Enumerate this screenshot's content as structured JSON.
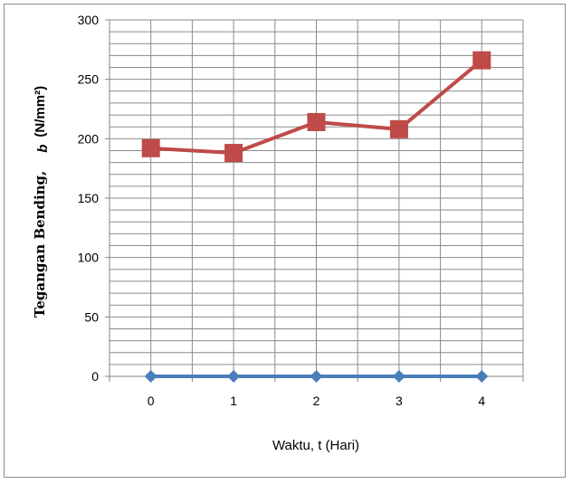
{
  "chart_data": {
    "type": "line",
    "categories": [
      "0",
      "1",
      "2",
      "3",
      "4"
    ],
    "x": [
      0,
      1,
      2,
      3,
      4
    ],
    "series": [
      {
        "values": [
          0,
          0,
          0,
          0,
          0
        ],
        "color": "#4a7ebb",
        "marker": "diamond"
      },
      {
        "values": [
          192,
          188,
          214,
          208,
          266
        ],
        "color": "#be4b48",
        "marker": "square"
      }
    ],
    "xlabel": "Waktu, t (Hari)",
    "ylabel_main": "Tegangan Bending,",
    "ylabel_subscript": "b",
    "ylabel_unit": "(N/mm²)",
    "ylim": [
      0,
      300
    ],
    "yticks": [
      0,
      50,
      100,
      150,
      200,
      250,
      300
    ],
    "grid": true
  }
}
